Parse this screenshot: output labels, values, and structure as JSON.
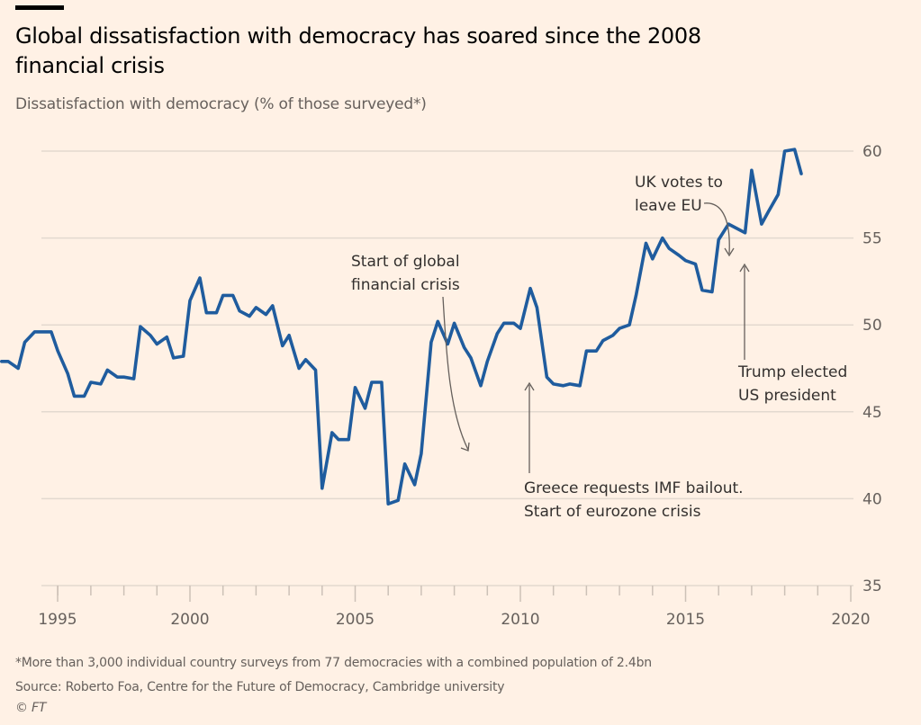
{
  "header": {
    "title": "Global dissatisfaction with democracy has soared since the 2008 financial crisis",
    "subtitle": "Dissatisfaction with democracy (% of those surveyed*)"
  },
  "footer": {
    "note": "*More than 3,000 individual country surveys from 77 democracies with a combined population of 2.4bn",
    "source": "Source: Roberto Foa, Centre for the Future of Democracy, Cambridge university",
    "copyright": "© FT"
  },
  "colors": {
    "line": "#1f5c9e",
    "grid": "#e3d9cf",
    "background": "#fff1e5",
    "annotation": "#66605c"
  },
  "chart_data": {
    "type": "line",
    "title": "Global dissatisfaction with democracy has soared since the 2008 financial crisis",
    "ylabel": "Dissatisfaction with democracy (% of those surveyed*)",
    "xlabel": "",
    "ylim": [
      35,
      60
    ],
    "xlim": [
      1994.25,
      2020.1
    ],
    "yticks": [
      35,
      40,
      45,
      50,
      55,
      60
    ],
    "xticks": [
      1995,
      2000,
      2005,
      2010,
      2015,
      2020
    ],
    "grid": true,
    "series": [
      {
        "name": "Dissatisfaction with democracy",
        "points": [
          [
            1994.3,
            47.9
          ],
          [
            1994.5,
            47.9
          ],
          [
            1994.8,
            47.5
          ],
          [
            1995.0,
            49.0
          ],
          [
            1995.3,
            49.6
          ],
          [
            1995.5,
            49.6
          ],
          [
            1995.8,
            49.6
          ],
          [
            1996.0,
            48.5
          ],
          [
            1996.3,
            47.2
          ],
          [
            1996.5,
            45.9
          ],
          [
            1996.8,
            45.9
          ],
          [
            1997.0,
            46.7
          ],
          [
            1997.3,
            46.6
          ],
          [
            1997.5,
            47.4
          ],
          [
            1997.8,
            47.0
          ],
          [
            1998.0,
            47.0
          ],
          [
            1998.3,
            46.9
          ],
          [
            1998.5,
            49.9
          ],
          [
            1998.8,
            49.4
          ],
          [
            1999.0,
            48.9
          ],
          [
            1999.3,
            49.3
          ],
          [
            1999.5,
            48.1
          ],
          [
            1999.8,
            48.2
          ],
          [
            2000.0,
            51.4
          ],
          [
            2000.3,
            52.7
          ],
          [
            2000.5,
            50.7
          ],
          [
            2000.8,
            50.7
          ],
          [
            2001.0,
            51.7
          ],
          [
            2001.3,
            51.7
          ],
          [
            2001.5,
            50.8
          ],
          [
            2001.8,
            50.5
          ],
          [
            2002.0,
            51.0
          ],
          [
            2002.3,
            50.6
          ],
          [
            2002.5,
            51.1
          ],
          [
            2002.8,
            48.8
          ],
          [
            2003.0,
            49.4
          ],
          [
            2003.3,
            47.5
          ],
          [
            2003.5,
            48.0
          ],
          [
            2003.8,
            47.4
          ],
          [
            2004.0,
            40.6
          ],
          [
            2004.3,
            43.8
          ],
          [
            2004.5,
            43.4
          ],
          [
            2004.8,
            43.4
          ],
          [
            2005.0,
            46.4
          ],
          [
            2005.3,
            45.2
          ],
          [
            2005.5,
            46.7
          ],
          [
            2005.8,
            46.7
          ],
          [
            2006.0,
            39.7
          ],
          [
            2006.3,
            39.9
          ],
          [
            2006.5,
            42.0
          ],
          [
            2006.8,
            40.8
          ],
          [
            2007.0,
            42.6
          ],
          [
            2007.3,
            49.0
          ],
          [
            2007.5,
            50.2
          ],
          [
            2007.8,
            48.9
          ],
          [
            2008.0,
            50.1
          ],
          [
            2008.3,
            48.7
          ],
          [
            2008.5,
            48.1
          ],
          [
            2008.8,
            46.5
          ],
          [
            2009.0,
            47.9
          ],
          [
            2009.3,
            49.5
          ],
          [
            2009.5,
            50.1
          ],
          [
            2009.8,
            50.1
          ],
          [
            2010.0,
            49.8
          ],
          [
            2010.3,
            52.1
          ],
          [
            2010.5,
            51.0
          ],
          [
            2010.8,
            47.0
          ],
          [
            2011.0,
            46.6
          ],
          [
            2011.3,
            46.5
          ],
          [
            2011.5,
            46.6
          ],
          [
            2011.8,
            46.5
          ],
          [
            2012.0,
            48.5
          ],
          [
            2012.3,
            48.5
          ],
          [
            2012.5,
            49.1
          ],
          [
            2012.8,
            49.4
          ],
          [
            2013.0,
            49.8
          ],
          [
            2013.3,
            50.0
          ],
          [
            2013.5,
            51.7
          ],
          [
            2013.8,
            54.7
          ],
          [
            2014.0,
            53.8
          ],
          [
            2014.3,
            55.0
          ],
          [
            2014.5,
            54.4
          ],
          [
            2014.8,
            54.0
          ],
          [
            2015.0,
            53.7
          ],
          [
            2015.3,
            53.5
          ],
          [
            2015.5,
            52.0
          ],
          [
            2015.8,
            51.9
          ],
          [
            2016.0,
            54.9
          ],
          [
            2016.3,
            55.8
          ],
          [
            2016.5,
            55.6
          ],
          [
            2016.8,
            55.3
          ],
          [
            2017.0,
            58.9
          ],
          [
            2017.3,
            55.8
          ],
          [
            2017.5,
            56.5
          ],
          [
            2017.8,
            57.5
          ],
          [
            2018.0,
            60.0
          ],
          [
            2018.3,
            60.1
          ],
          [
            2018.5,
            58.7
          ]
        ]
      }
    ],
    "annotations": [
      {
        "text": [
          "Start of global",
          "financial crisis"
        ],
        "target_year": 2008.5,
        "target_value": 42.6
      },
      {
        "text": [
          "Greece requests IMF bailout.",
          "Start of eurozone crisis"
        ],
        "target_year": 2010.2,
        "target_value": 46.5
      },
      {
        "text": [
          "UK votes to",
          "leave EU"
        ],
        "target_year": 2016.3,
        "target_value": 54.0
      },
      {
        "text": [
          "Trump elected",
          "US president"
        ],
        "target_year": 2016.8,
        "target_value": 53.5
      }
    ]
  }
}
